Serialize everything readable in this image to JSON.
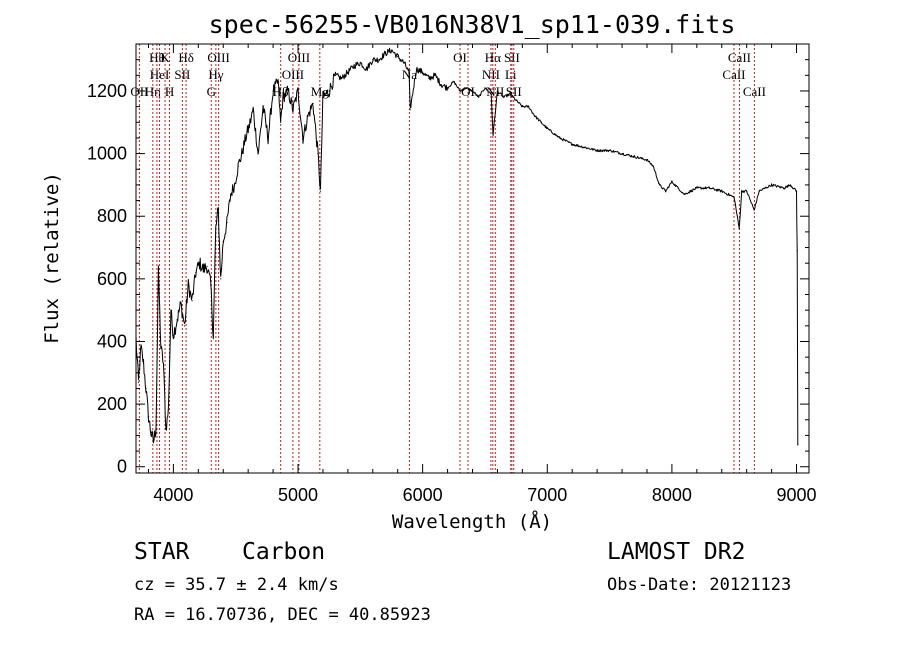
{
  "chart_data": {
    "type": "line",
    "title": "spec-56255-VB016N38V1_sp11-039.fits",
    "xlabel": "Wavelength (Å)",
    "ylabel": "Flux (relative)",
    "xlim": [
      3700,
      9100
    ],
    "ylim": [
      -20,
      1350
    ],
    "x_ticks": [
      4000,
      5000,
      6000,
      7000,
      8000,
      9000
    ],
    "y_ticks": [
      0,
      200,
      400,
      600,
      800,
      1000,
      1200
    ],
    "grid": false,
    "series": [
      {
        "color": "#000000",
        "x": [
          3700,
          3720,
          3740,
          3760,
          3780,
          3800,
          3820,
          3840,
          3860,
          3880,
          3900,
          3920,
          3940,
          3960,
          3980,
          4000,
          4030,
          4060,
          4090,
          4120,
          4150,
          4180,
          4210,
          4240,
          4270,
          4300,
          4320,
          4340,
          4360,
          4380,
          4400,
          4430,
          4460,
          4490,
          4520,
          4550,
          4580,
          4610,
          4640,
          4680,
          4720,
          4760,
          4800,
          4840,
          4860,
          4880,
          4920,
          4960,
          5000,
          5040,
          5080,
          5120,
          5160,
          5180,
          5200,
          5250,
          5300,
          5350,
          5400,
          5450,
          5500,
          5550,
          5600,
          5650,
          5700,
          5750,
          5800,
          5850,
          5890,
          5900,
          5950,
          6000,
          6050,
          6100,
          6150,
          6200,
          6250,
          6300,
          6350,
          6400,
          6450,
          6500,
          6550,
          6565,
          6600,
          6650,
          6700,
          6750,
          6800,
          6850,
          6900,
          6950,
          7000,
          7100,
          7200,
          7300,
          7400,
          7500,
          7600,
          7700,
          7800,
          7850,
          7900,
          7950,
          8000,
          8050,
          8100,
          8150,
          8200,
          8300,
          8400,
          8500,
          8540,
          8560,
          8600,
          8660,
          8700,
          8800,
          8900,
          8950,
          9000,
          9005,
          9010
        ],
        "y": [
          410,
          270,
          380,
          330,
          250,
          160,
          110,
          80,
          120,
          620,
          380,
          330,
          120,
          180,
          500,
          420,
          470,
          520,
          450,
          580,
          530,
          620,
          650,
          630,
          640,
          580,
          420,
          760,
          820,
          600,
          720,
          780,
          870,
          900,
          960,
          1000,
          1050,
          1090,
          1140,
          1000,
          1150,
          1050,
          1200,
          1230,
          1100,
          1180,
          1200,
          1140,
          1200,
          1050,
          1120,
          1160,
          1000,
          880,
          1180,
          1200,
          1250,
          1240,
          1260,
          1280,
          1290,
          1270,
          1300,
          1300,
          1320,
          1330,
          1310,
          1290,
          1260,
          1140,
          1270,
          1260,
          1240,
          1250,
          1220,
          1210,
          1230,
          1200,
          1210,
          1200,
          1180,
          1210,
          1190,
          1060,
          1200,
          1180,
          1190,
          1170,
          1150,
          1150,
          1120,
          1100,
          1080,
          1050,
          1030,
          1020,
          1010,
          1010,
          1000,
          990,
          980,
          960,
          900,
          880,
          910,
          890,
          870,
          880,
          890,
          890,
          880,
          860,
          760,
          880,
          880,
          820,
          880,
          900,
          890,
          900,
          880,
          690,
          70
        ]
      }
    ],
    "lines": [
      {
        "lambda": 3727,
        "labels": [
          "OII"
        ],
        "rows": [
          3
        ]
      },
      {
        "lambda": 3835,
        "labels": [
          "Hη"
        ],
        "rows": [
          3
        ]
      },
      {
        "lambda": 3868,
        "labels": [
          "Hθ"
        ],
        "rows": [
          1
        ]
      },
      {
        "lambda": 3889,
        "labels": [
          "HeI"
        ],
        "rows": [
          2
        ]
      },
      {
        "lambda": 3933,
        "labels": [
          "K"
        ],
        "rows": [
          1
        ]
      },
      {
        "lambda": 3969,
        "labels": [
          "H"
        ],
        "rows": [
          3
        ]
      },
      {
        "lambda": 4072,
        "labels": [
          "SII"
        ],
        "rows": [
          2
        ]
      },
      {
        "lambda": 4102,
        "labels": [
          "Hδ"
        ],
        "rows": [
          1
        ]
      },
      {
        "lambda": 4304,
        "labels": [
          "G"
        ],
        "rows": [
          3
        ]
      },
      {
        "lambda": 4341,
        "labels": [
          "Hγ"
        ],
        "rows": [
          2
        ]
      },
      {
        "lambda": 4363,
        "labels": [
          "OIII"
        ],
        "rows": [
          1
        ]
      },
      {
        "lambda": 4861,
        "labels": [
          "Hβ"
        ],
        "rows": [
          3
        ]
      },
      {
        "lambda": 4959,
        "labels": [
          "OIII"
        ],
        "rows": [
          2
        ]
      },
      {
        "lambda": 5007,
        "labels": [
          "OIII"
        ],
        "rows": [
          1
        ]
      },
      {
        "lambda": 5175,
        "labels": [
          "Mg"
        ],
        "rows": [
          3
        ]
      },
      {
        "lambda": 5894,
        "labels": [
          "Na"
        ],
        "rows": [
          2
        ]
      },
      {
        "lambda": 6300,
        "labels": [
          "OI"
        ],
        "rows": [
          1
        ]
      },
      {
        "lambda": 6364,
        "labels": [
          "OI"
        ],
        "rows": [
          3
        ]
      },
      {
        "lambda": 6548,
        "labels": [
          "NII"
        ],
        "rows": [
          2
        ]
      },
      {
        "lambda": 6563,
        "labels": [
          "Hα"
        ],
        "rows": [
          1
        ]
      },
      {
        "lambda": 6583,
        "labels": [
          "NII"
        ],
        "rows": [
          3
        ]
      },
      {
        "lambda": 6707,
        "labels": [
          "Li"
        ],
        "rows": [
          2
        ]
      },
      {
        "lambda": 6716,
        "labels": [
          "SII"
        ],
        "rows": [
          1
        ]
      },
      {
        "lambda": 6731,
        "labels": [
          "SII"
        ],
        "rows": [
          3
        ]
      },
      {
        "lambda": 8498,
        "labels": [
          "CaII"
        ],
        "rows": [
          2
        ]
      },
      {
        "lambda": 8542,
        "labels": [
          "CaII"
        ],
        "rows": [
          1
        ]
      },
      {
        "lambda": 8662,
        "labels": [
          "CaII"
        ],
        "rows": [
          3
        ]
      }
    ],
    "line_color": "#b22222"
  },
  "info": {
    "object_class": "STAR",
    "subclass": "Carbon",
    "redshift": "cz = 35.7 ± 2.4 km/s",
    "coords": "RA =  16.70736, DEC =  40.85923",
    "survey": "LAMOST DR2",
    "obs_date": "Obs-Date: 20121123"
  }
}
